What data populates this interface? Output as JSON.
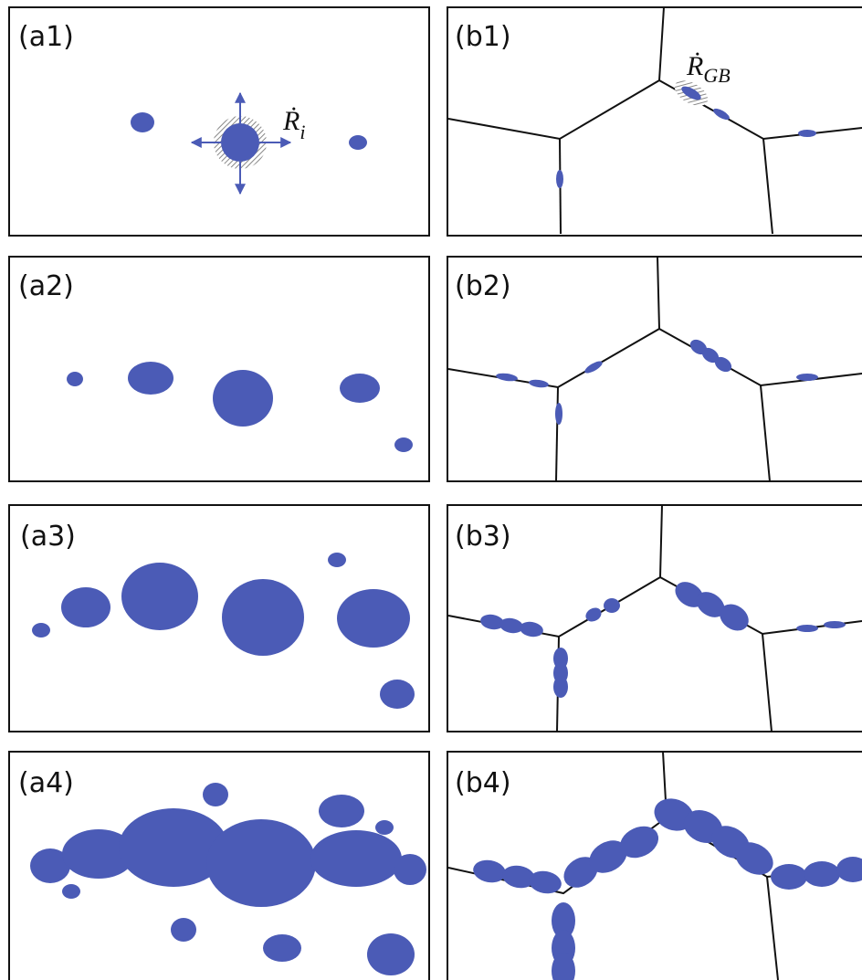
{
  "panels": [
    {
      "label": "(a1)"
    },
    {
      "label": "(b1)"
    },
    {
      "label": "(a2)"
    },
    {
      "label": "(b2)"
    },
    {
      "label": "(a3)"
    },
    {
      "label": "(b3)"
    },
    {
      "label": "(a4)"
    },
    {
      "label": "(b4)"
    }
  ],
  "annotations": [
    {
      "symbol": "Ṙ",
      "subscript": "i"
    },
    {
      "symbol": "Ṙ",
      "subscript": "GB"
    }
  ]
}
